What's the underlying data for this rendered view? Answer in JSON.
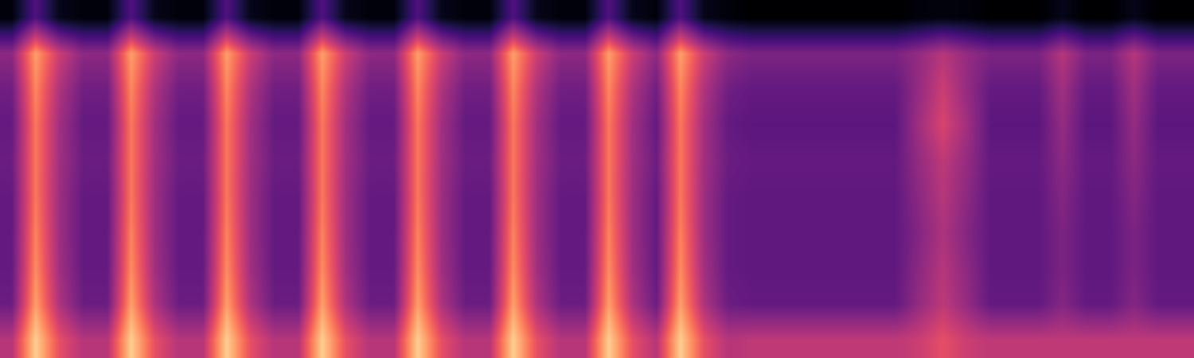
{
  "chart_data": {
    "type": "heatmap",
    "color": "magma",
    "tick_labels": false,
    "value_range": [
      0,
      1
    ],
    "cells": [
      [
        0.02,
        0.25,
        0.05,
        0.02,
        0.02,
        0.25,
        0.05,
        0.02,
        0.02,
        0.25,
        0.05,
        0.02,
        0.02,
        0.25,
        0.05,
        0.02,
        0.02,
        0.25,
        0.05,
        0.02,
        0.02,
        0.25,
        0.05,
        0.02,
        0.02,
        0.25,
        0.05,
        0.02,
        0.25,
        0.05,
        0.02,
        0,
        0,
        0,
        0,
        0,
        0,
        0,
        0.02,
        0.03,
        0.02,
        0,
        0,
        0,
        0.05,
        0,
        0,
        0.05,
        0,
        0
      ],
      [
        0.4,
        0.8,
        0.55,
        0.4,
        0.4,
        0.8,
        0.55,
        0.4,
        0.4,
        0.8,
        0.55,
        0.4,
        0.4,
        0.8,
        0.55,
        0.4,
        0.4,
        0.8,
        0.55,
        0.4,
        0.4,
        0.8,
        0.55,
        0.4,
        0.4,
        0.8,
        0.55,
        0.4,
        0.8,
        0.55,
        0.4,
        0.36,
        0.36,
        0.36,
        0.36,
        0.36,
        0.36,
        0.36,
        0.42,
        0.5,
        0.42,
        0.36,
        0.36,
        0.36,
        0.5,
        0.36,
        0.36,
        0.5,
        0.36,
        0.36
      ],
      [
        0.33,
        0.75,
        0.48,
        0.33,
        0.33,
        0.75,
        0.48,
        0.33,
        0.33,
        0.75,
        0.48,
        0.33,
        0.33,
        0.75,
        0.48,
        0.33,
        0.33,
        0.75,
        0.48,
        0.33,
        0.33,
        0.75,
        0.48,
        0.33,
        0.33,
        0.75,
        0.48,
        0.33,
        0.75,
        0.48,
        0.33,
        0.3,
        0.3,
        0.3,
        0.3,
        0.3,
        0.3,
        0.3,
        0.42,
        0.55,
        0.42,
        0.3,
        0.3,
        0.3,
        0.45,
        0.3,
        0.3,
        0.45,
        0.3,
        0.3
      ],
      [
        0.3,
        0.72,
        0.45,
        0.3,
        0.3,
        0.72,
        0.45,
        0.3,
        0.3,
        0.72,
        0.45,
        0.3,
        0.3,
        0.72,
        0.45,
        0.3,
        0.3,
        0.72,
        0.45,
        0.3,
        0.3,
        0.72,
        0.45,
        0.3,
        0.3,
        0.72,
        0.45,
        0.3,
        0.72,
        0.45,
        0.3,
        0.28,
        0.28,
        0.28,
        0.28,
        0.28,
        0.28,
        0.28,
        0.45,
        0.58,
        0.45,
        0.28,
        0.28,
        0.28,
        0.42,
        0.28,
        0.28,
        0.42,
        0.28,
        0.28
      ],
      [
        0.32,
        0.72,
        0.45,
        0.32,
        0.32,
        0.72,
        0.45,
        0.32,
        0.32,
        0.72,
        0.45,
        0.32,
        0.32,
        0.72,
        0.45,
        0.32,
        0.32,
        0.72,
        0.45,
        0.32,
        0.32,
        0.72,
        0.45,
        0.32,
        0.32,
        0.72,
        0.45,
        0.32,
        0.72,
        0.45,
        0.32,
        0.3,
        0.3,
        0.3,
        0.3,
        0.3,
        0.3,
        0.3,
        0.42,
        0.52,
        0.42,
        0.3,
        0.3,
        0.3,
        0.4,
        0.3,
        0.3,
        0.4,
        0.3,
        0.3
      ],
      [
        0.3,
        0.72,
        0.44,
        0.3,
        0.3,
        0.72,
        0.44,
        0.3,
        0.3,
        0.72,
        0.44,
        0.3,
        0.3,
        0.72,
        0.44,
        0.3,
        0.3,
        0.72,
        0.44,
        0.3,
        0.3,
        0.72,
        0.44,
        0.3,
        0.3,
        0.72,
        0.44,
        0.3,
        0.72,
        0.44,
        0.3,
        0.29,
        0.29,
        0.29,
        0.29,
        0.29,
        0.29,
        0.29,
        0.4,
        0.5,
        0.4,
        0.29,
        0.29,
        0.29,
        0.38,
        0.29,
        0.29,
        0.38,
        0.29,
        0.29
      ],
      [
        0.3,
        0.74,
        0.44,
        0.3,
        0.3,
        0.74,
        0.44,
        0.3,
        0.3,
        0.74,
        0.44,
        0.3,
        0.3,
        0.74,
        0.44,
        0.3,
        0.3,
        0.74,
        0.44,
        0.3,
        0.3,
        0.74,
        0.44,
        0.3,
        0.3,
        0.74,
        0.44,
        0.3,
        0.74,
        0.44,
        0.3,
        0.29,
        0.29,
        0.29,
        0.29,
        0.29,
        0.29,
        0.29,
        0.38,
        0.48,
        0.38,
        0.29,
        0.29,
        0.29,
        0.36,
        0.29,
        0.29,
        0.36,
        0.29,
        0.29
      ],
      [
        0.3,
        0.76,
        0.45,
        0.3,
        0.3,
        0.76,
        0.45,
        0.3,
        0.3,
        0.76,
        0.45,
        0.3,
        0.3,
        0.76,
        0.45,
        0.3,
        0.3,
        0.76,
        0.45,
        0.3,
        0.3,
        0.76,
        0.45,
        0.3,
        0.3,
        0.76,
        0.45,
        0.3,
        0.76,
        0.45,
        0.3,
        0.29,
        0.29,
        0.29,
        0.29,
        0.29,
        0.29,
        0.29,
        0.4,
        0.5,
        0.4,
        0.29,
        0.29,
        0.29,
        0.36,
        0.29,
        0.29,
        0.36,
        0.29,
        0.29
      ],
      [
        0.32,
        0.8,
        0.48,
        0.32,
        0.32,
        0.8,
        0.48,
        0.32,
        0.32,
        0.8,
        0.48,
        0.32,
        0.32,
        0.8,
        0.48,
        0.32,
        0.32,
        0.8,
        0.48,
        0.32,
        0.32,
        0.8,
        0.48,
        0.32,
        0.32,
        0.8,
        0.48,
        0.32,
        0.8,
        0.48,
        0.32,
        0.3,
        0.3,
        0.3,
        0.3,
        0.3,
        0.3,
        0.3,
        0.42,
        0.52,
        0.42,
        0.3,
        0.3,
        0.3,
        0.38,
        0.3,
        0.3,
        0.38,
        0.3,
        0.3
      ],
      [
        0.5,
        0.9,
        0.62,
        0.5,
        0.5,
        0.9,
        0.62,
        0.5,
        0.5,
        0.9,
        0.62,
        0.5,
        0.5,
        0.9,
        0.62,
        0.5,
        0.5,
        0.9,
        0.62,
        0.5,
        0.5,
        0.9,
        0.62,
        0.5,
        0.5,
        0.9,
        0.62,
        0.5,
        0.9,
        0.62,
        0.5,
        0.52,
        0.52,
        0.52,
        0.52,
        0.52,
        0.52,
        0.52,
        0.55,
        0.62,
        0.55,
        0.52,
        0.52,
        0.52,
        0.52,
        0.52,
        0.52,
        0.52,
        0.52,
        0.52
      ]
    ]
  }
}
